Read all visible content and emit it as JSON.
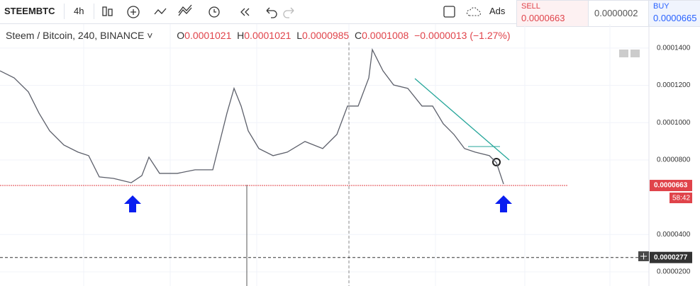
{
  "toolbar": {
    "symbol": "STEEMBTC",
    "interval": "4h",
    "ads": "Ads"
  },
  "trade": {
    "sell_label": "SELL",
    "sell": "0.0000663",
    "spread": "0.0000002",
    "buy_label": "BUY",
    "buy": "0.0000665"
  },
  "legend": {
    "name": "Steem / Bitcoin, 240, BINANCE",
    "o_label": "O",
    "o": "0.0001021",
    "h_label": "H",
    "h": "0.0001021",
    "l_label": "L",
    "l": "0.0000985",
    "c_label": "C",
    "c": "0.0001008",
    "change": "−0.0000013 (−1.27%)"
  },
  "chart_data": {
    "type": "line",
    "color": "#5d606b",
    "x": [
      0,
      4,
      8,
      11,
      14,
      18,
      22,
      25,
      28,
      32,
      37,
      40,
      42,
      45,
      50,
      55,
      60,
      62,
      64,
      66,
      68,
      70,
      73,
      77,
      81,
      86,
      91,
      95,
      98,
      101,
      104,
      105,
      108,
      111,
      115,
      119,
      122,
      125,
      128,
      131,
      134,
      138,
      140,
      142
    ],
    "values": [
      0.0001278,
      0.000124,
      0.0001165,
      0.0001051,
      9.56e-05,
      8.8e-05,
      8.42e-05,
      8.23e-05,
      7.09e-05,
      7.01e-05,
      6.78e-05,
      7.16e-05,
      8.15e-05,
      7.28e-05,
      7.28e-05,
      7.47e-05,
      7.47e-05,
      8.99e-05,
      0.0001051,
      0.0001184,
      0.0001089,
      9.56e-05,
      8.61e-05,
      8.23e-05,
      8.42e-05,
      8.99e-05,
      8.61e-05,
      9.37e-05,
      0.0001089,
      0.0001089,
      0.000124,
      0.0001392,
      0.0001278,
      0.0001202,
      0.0001184,
      0.0001089,
      0.0001089,
      9.94e-05,
      9.37e-05,
      8.61e-05,
      8.42e-05,
      8.23e-05,
      7.85e-05,
      6.71e-05
    ],
    "xlim": [
      0,
      183
    ],
    "ylim": [
      1.24e-05,
      0.0001506
    ],
    "yticks": [
      {
        "value": 0.00014,
        "label": "0.0001400"
      },
      {
        "value": 0.00012,
        "label": "0.0001200"
      },
      {
        "value": 0.0001,
        "label": "0.0001000"
      },
      {
        "value": 8e-05,
        "label": "0.0000800"
      },
      {
        "value": 4e-05,
        "label": "0.0000400"
      },
      {
        "value": 2e-05,
        "label": "0.0000200"
      }
    ],
    "grid": true,
    "price_lines": [
      {
        "value": 6.63e-05,
        "label": "0.0000663",
        "color": "#e0434a"
      },
      {
        "value": 2.77e-05,
        "label": "0.0000277",
        "color": "#333333"
      }
    ],
    "countdown": "58:42"
  }
}
